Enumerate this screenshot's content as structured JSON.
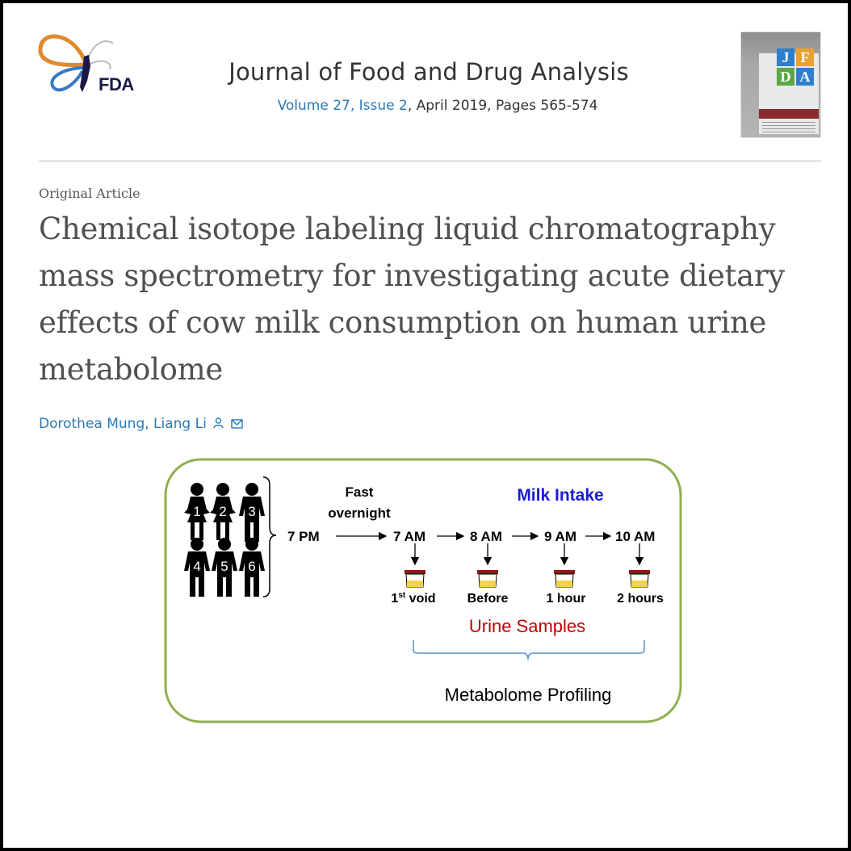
{
  "header": {
    "logo_text": "FDA",
    "journal_title": "Journal of Food and Drug Analysis",
    "volume": "Volume 27",
    "issue": "Issue 2",
    "date_pages": ", April 2019, Pages 565-574",
    "cover_letters": [
      "J",
      "F",
      "D",
      "A"
    ]
  },
  "article": {
    "type": "Original Article",
    "title_lines": [
      "Chemical isotope labeling liquid chromatography",
      "mass spectrometry for investigating acute dietary",
      "effects of cow milk consumption on human urine",
      "metabolome"
    ],
    "authors": "Dorothea Mung, Liang Li"
  },
  "figure": {
    "fast_line1": "Fast",
    "fast_line2": "overnight",
    "milk_intake": "Milk Intake",
    "times": [
      "7 PM",
      "7 AM",
      "8 AM",
      "9 AM",
      "10 AM"
    ],
    "samples": [
      "1",
      "st",
      " void",
      "Before",
      "1 hour",
      "2 hours"
    ],
    "subjects": [
      "1",
      "2",
      "3",
      "4",
      "5",
      "6"
    ],
    "urine_samples": "Urine Samples",
    "profiling": "Metabolome  Profiling",
    "colors": {
      "frame": "#8db04e",
      "milk": "#1a1ad6",
      "urine": "#c00000",
      "cup_lid": "#8b1a1a"
    }
  }
}
